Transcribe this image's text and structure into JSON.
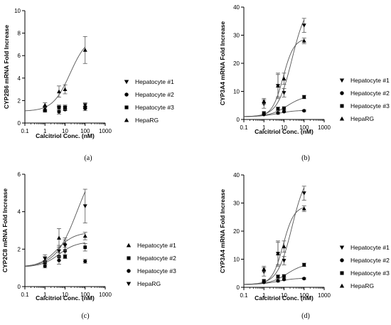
{
  "chart_data": [
    {
      "type": "scatter",
      "panel_label": "(a)",
      "xlabel": "Calcitriol Conc. (nM)",
      "ylabel": "CYP2B6 mRNA Fold Increase",
      "xscale": "log",
      "xlim": [
        0.1,
        1000
      ],
      "ylim": [
        0,
        10
      ],
      "xticks": [
        "0.1",
        "1",
        "10",
        "100",
        "1000"
      ],
      "yticks": [
        "0",
        "2",
        "4",
        "6",
        "8",
        "10"
      ],
      "grid": false,
      "legend_position": "right",
      "series": [
        {
          "name": "Hepatocyte #1",
          "marker": "triangle-down",
          "x": [
            1,
            5,
            10,
            100
          ],
          "y": [
            1.3,
            1.3,
            1.3,
            1.6
          ],
          "err": [
            0.2,
            0.2,
            0.2,
            0.2
          ],
          "fit": false
        },
        {
          "name": "Hepatocyte #2",
          "marker": "circle",
          "x": [
            1,
            5,
            10,
            100
          ],
          "y": [
            1.1,
            1.0,
            1.2,
            1.3
          ],
          "err": [
            0.1,
            0.2,
            0.1,
            0.2
          ],
          "fit": false
        },
        {
          "name": "Hepatocyte #3",
          "marker": "square",
          "x": [
            1,
            5,
            10,
            100
          ],
          "y": [
            1.1,
            1.4,
            1.4,
            1.4
          ],
          "err": [
            0.1,
            0.2,
            0.2,
            0.1
          ],
          "fit": false
        },
        {
          "name": "HepaRG",
          "marker": "triangle-up",
          "x": [
            1,
            5,
            10,
            100
          ],
          "y": [
            1.6,
            2.8,
            3.0,
            6.5
          ],
          "err": [
            0.2,
            0.5,
            0.4,
            1.2
          ],
          "fit": true,
          "fit_params": {
            "bottom": 1.05,
            "top": 7.8,
            "ec50": 18,
            "hill": 1.0
          }
        }
      ]
    },
    {
      "type": "scatter",
      "panel_label": "(b)",
      "xlabel": "Calcitriol Conc. (nM)",
      "ylabel": "CYP3A4 mRNA Fold Increase",
      "xscale": "log",
      "xlim": [
        0.1,
        1000
      ],
      "ylim": [
        0,
        40
      ],
      "xticks": [
        "0.1",
        "1",
        "10",
        "100",
        "1000"
      ],
      "yticks": [
        "0",
        "10",
        "20",
        "30",
        "40"
      ],
      "grid": false,
      "legend_position": "right",
      "series": [
        {
          "name": "Hepatocyte #1",
          "marker": "triangle-down",
          "x": [
            1,
            5,
            10,
            100
          ],
          "y": [
            5.5,
            12.0,
            9.5,
            33.5
          ],
          "err": [
            1.5,
            4.0,
            1.5,
            2.5
          ],
          "fit": true,
          "fit_params": {
            "bottom": 1.0,
            "top": 42,
            "ec50": 25,
            "hill": 1.2
          }
        },
        {
          "name": "Hepatocyte #2",
          "marker": "circle",
          "x": [
            1,
            5,
            10,
            100
          ],
          "y": [
            1.8,
            2.3,
            2.8,
            3.1
          ],
          "err": [
            0.3,
            0.4,
            0.3,
            0.3
          ],
          "fit": true,
          "fit_params": {
            "bottom": 1.0,
            "top": 3.3,
            "ec50": 5,
            "hill": 1.0
          }
        },
        {
          "name": "Hepatocyte #3",
          "marker": "square",
          "x": [
            1,
            5,
            10,
            100
          ],
          "y": [
            2.3,
            3.8,
            4.0,
            8.0
          ],
          "err": [
            0.4,
            0.6,
            0.5,
            0.6
          ],
          "fit": true,
          "fit_params": {
            "bottom": 1.0,
            "top": 8.6,
            "ec50": 14,
            "hill": 1.0
          }
        },
        {
          "name": "HepaRG",
          "marker": "triangle-up",
          "x": [
            1,
            5,
            10,
            100
          ],
          "y": [
            6.5,
            12.0,
            14.5,
            28.0
          ],
          "err": [
            1.0,
            4.5,
            2.0,
            1.0
          ],
          "fit": true,
          "fit_params": {
            "bottom": 1.0,
            "top": 29,
            "ec50": 9,
            "hill": 1.6
          }
        }
      ]
    },
    {
      "type": "scatter",
      "panel_label": "(c)",
      "xlabel": "Calcitriol Conc. (nM)",
      "ylabel": "CYP2C8 mRNA Fold Increase",
      "xscale": "log",
      "xlim": [
        0.1,
        1000
      ],
      "ylim": [
        0,
        6
      ],
      "xticks": [
        "0.1",
        "1",
        "10",
        "100",
        "1000"
      ],
      "yticks": [
        "0",
        "2",
        "4",
        "6"
      ],
      "grid": false,
      "legend_position": "right",
      "series": [
        {
          "name": "Hepatocyte #1",
          "marker": "triangle-up",
          "x": [
            1,
            5,
            10,
            100
          ],
          "y": [
            1.4,
            2.6,
            2.3,
            2.7
          ],
          "err": [
            0.2,
            0.5,
            0.3,
            0.2
          ],
          "fit": true,
          "fit_params": {
            "bottom": 1.05,
            "top": 2.9,
            "ec50": 4,
            "hill": 1.0
          }
        },
        {
          "name": "Hepatocyte #2",
          "marker": "square",
          "x": [
            1,
            5,
            10,
            100
          ],
          "y": [
            1.3,
            1.6,
            1.6,
            2.1
          ],
          "err": [
            0.1,
            0.2,
            0.1,
            0.2
          ],
          "fit": true,
          "fit_params": {
            "bottom": 1.05,
            "top": 2.4,
            "ec50": 5,
            "hill": 1.0
          }
        },
        {
          "name": "Hepatocyte #3",
          "marker": "circle",
          "x": [
            1,
            5,
            10,
            100
          ],
          "y": [
            1.1,
            1.4,
            1.9,
            1.35
          ],
          "err": [
            0.1,
            0.2,
            0.2,
            0.1
          ],
          "fit": false
        },
        {
          "name": "HepaRG",
          "marker": "triangle-down",
          "x": [
            1,
            5,
            10,
            100
          ],
          "y": [
            1.5,
            1.9,
            2.2,
            4.3
          ],
          "err": [
            0.2,
            0.3,
            0.3,
            0.9
          ],
          "fit": true,
          "fit_params": {
            "bottom": 1.05,
            "top": 7.0,
            "ec50": 40,
            "hill": 0.8
          }
        }
      ]
    },
    {
      "type": "scatter",
      "panel_label": "(d)",
      "xlabel": "Calcitriol Conc. (nM)",
      "ylabel": "CYP3A4 mRNA Fold Increase",
      "xscale": "log",
      "xlim": [
        0.1,
        1000
      ],
      "ylim": [
        0,
        40
      ],
      "xticks": [
        "0.1",
        "1",
        "10",
        "100",
        "1000"
      ],
      "yticks": [
        "0",
        "10",
        "20",
        "30",
        "40"
      ],
      "grid": false,
      "legend_position": "right",
      "series": [
        {
          "name": "Hepatocyte #1",
          "marker": "triangle-down",
          "x": [
            1,
            5,
            10,
            100
          ],
          "y": [
            5.5,
            12.0,
            9.5,
            33.5
          ],
          "err": [
            1.5,
            4.0,
            1.5,
            2.5
          ],
          "fit": true,
          "fit_params": {
            "bottom": 1.0,
            "top": 42,
            "ec50": 25,
            "hill": 1.2
          }
        },
        {
          "name": "Hepatocyte #2",
          "marker": "circle",
          "x": [
            1,
            5,
            10,
            100
          ],
          "y": [
            1.8,
            2.3,
            2.8,
            3.1
          ],
          "err": [
            0.3,
            0.4,
            0.3,
            0.3
          ],
          "fit": true,
          "fit_params": {
            "bottom": 1.0,
            "top": 3.3,
            "ec50": 5,
            "hill": 1.0
          }
        },
        {
          "name": "Hepatocyte #3",
          "marker": "square",
          "x": [
            1,
            5,
            10,
            100
          ],
          "y": [
            2.3,
            3.8,
            4.0,
            8.0
          ],
          "err": [
            0.4,
            0.6,
            0.5,
            0.6
          ],
          "fit": true,
          "fit_params": {
            "bottom": 1.0,
            "top": 8.6,
            "ec50": 14,
            "hill": 1.0
          }
        },
        {
          "name": "HepaRG",
          "marker": "triangle-up",
          "x": [
            1,
            5,
            10,
            100
          ],
          "y": [
            6.5,
            12.0,
            14.5,
            28.0
          ],
          "err": [
            1.0,
            4.5,
            2.0,
            1.0
          ],
          "fit": true,
          "fit_params": {
            "bottom": 1.0,
            "top": 29,
            "ec50": 9,
            "hill": 1.6
          }
        }
      ]
    }
  ]
}
